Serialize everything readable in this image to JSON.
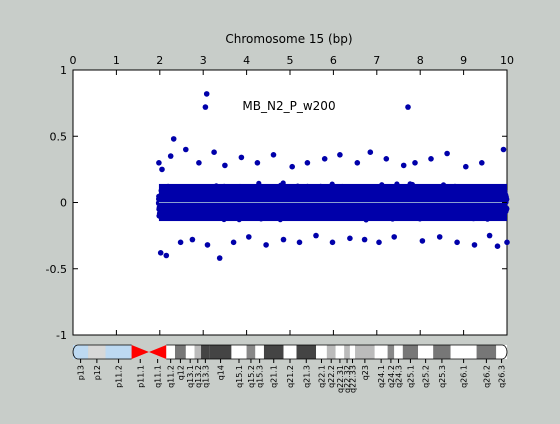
{
  "chart_data": {
    "type": "scatter",
    "title": "",
    "xlabel": "Chromosome 15 (bp)",
    "ylabel": "",
    "annotation": "MB_N2_P_w200",
    "xlim": [
      0,
      10
    ],
    "ylim": [
      -1,
      1
    ],
    "x_ticks": [
      "0",
      "1",
      "2",
      "3",
      "4",
      "5",
      "6",
      "7",
      "8",
      "9",
      "10"
    ],
    "y_ticks": [
      "1",
      "0.5",
      "0",
      "-0.5",
      "-1"
    ],
    "grid": false,
    "marker_color": "#0000aa",
    "baseline_color": "#8a9fd0",
    "series": [
      {
        "x": [
          1.98,
          2.02,
          2.05,
          2.15,
          2.25,
          2.32,
          2.48,
          2.6,
          2.75,
          2.9,
          3.05,
          3.08,
          3.1,
          3.25,
          3.38,
          3.5,
          3.7,
          3.88,
          4.05,
          4.25,
          4.45,
          4.62,
          4.85,
          5.05,
          5.22,
          5.4,
          5.6,
          5.8,
          5.98,
          6.15,
          6.38,
          6.55,
          6.72,
          6.85,
          7.05,
          7.22,
          7.4,
          7.62,
          7.72,
          7.88,
          8.05,
          8.25,
          8.45,
          8.62,
          8.85,
          9.05,
          9.25,
          9.42,
          9.6,
          9.78,
          9.92,
          10.0
        ],
        "y": [
          0.3,
          -0.38,
          0.25,
          -0.4,
          0.35,
          0.48,
          -0.3,
          0.4,
          -0.28,
          0.3,
          0.72,
          0.82,
          -0.32,
          0.38,
          -0.42,
          0.28,
          -0.3,
          0.34,
          -0.26,
          0.3,
          -0.32,
          0.36,
          -0.28,
          0.27,
          -0.3,
          0.3,
          -0.25,
          0.33,
          -0.3,
          0.36,
          -0.27,
          0.3,
          -0.28,
          0.38,
          -0.3,
          0.33,
          -0.26,
          0.28,
          0.72,
          0.3,
          -0.29,
          0.33,
          -0.26,
          0.37,
          -0.3,
          0.27,
          -0.32,
          0.3,
          -0.25,
          -0.33,
          0.4,
          -0.3
        ]
      }
    ],
    "ideogram_bands": [
      {
        "name": "p13",
        "start": 0.0,
        "end": 0.35,
        "shade": "#bdd9f2"
      },
      {
        "name": "p12",
        "start": 0.35,
        "end": 0.75,
        "shade": "#d8d8d8"
      },
      {
        "name": "p11.2",
        "start": 0.75,
        "end": 1.35,
        "shade": "#bdd9f2"
      },
      {
        "name": "p11.1",
        "start": 1.35,
        "end": 1.75,
        "shade": "#ff0000"
      },
      {
        "name": "q11.1",
        "start": 1.75,
        "end": 2.15,
        "shade": "#ff0000"
      },
      {
        "name": "q11.2",
        "start": 2.15,
        "end": 2.35,
        "shade": "#ffffff"
      },
      {
        "name": "q12",
        "start": 2.35,
        "end": 2.6,
        "shade": "#777777"
      },
      {
        "name": "q13.1",
        "start": 2.6,
        "end": 2.8,
        "shade": "#ffffff"
      },
      {
        "name": "q13.2",
        "start": 2.8,
        "end": 2.95,
        "shade": "#bbbbbb"
      },
      {
        "name": "q13.3",
        "start": 2.95,
        "end": 3.15,
        "shade": "#444444"
      },
      {
        "name": "q14",
        "start": 3.15,
        "end": 3.65,
        "shade": "#444444"
      },
      {
        "name": "q15.1",
        "start": 3.65,
        "end": 4.0,
        "shade": "#ffffff"
      },
      {
        "name": "q15.2",
        "start": 4.0,
        "end": 4.2,
        "shade": "#888888"
      },
      {
        "name": "q15.3",
        "start": 4.2,
        "end": 4.4,
        "shade": "#ffffff"
      },
      {
        "name": "q21.1",
        "start": 4.4,
        "end": 4.85,
        "shade": "#444444"
      },
      {
        "name": "q21.2",
        "start": 4.85,
        "end": 5.15,
        "shade": "#ffffff"
      },
      {
        "name": "q21.3",
        "start": 5.15,
        "end": 5.6,
        "shade": "#444444"
      },
      {
        "name": "q22.1",
        "start": 5.6,
        "end": 5.85,
        "shade": "#ffffff"
      },
      {
        "name": "q22.2",
        "start": 5.85,
        "end": 6.05,
        "shade": "#bbbbbb"
      },
      {
        "name": "q22.31",
        "start": 6.05,
        "end": 6.25,
        "shade": "#ffffff"
      },
      {
        "name": "q22.32",
        "start": 6.25,
        "end": 6.38,
        "shade": "#bbbbbb"
      },
      {
        "name": "q22.33",
        "start": 6.38,
        "end": 6.5,
        "shade": "#ffffff"
      },
      {
        "name": "q23",
        "start": 6.5,
        "end": 6.95,
        "shade": "#bbbbbb"
      },
      {
        "name": "q24.1",
        "start": 6.95,
        "end": 7.25,
        "shade": "#ffffff"
      },
      {
        "name": "q24.2",
        "start": 7.25,
        "end": 7.4,
        "shade": "#888888"
      },
      {
        "name": "q24.3",
        "start": 7.4,
        "end": 7.6,
        "shade": "#ffffff"
      },
      {
        "name": "q25.1",
        "start": 7.6,
        "end": 7.95,
        "shade": "#777777"
      },
      {
        "name": "q25.2",
        "start": 7.95,
        "end": 8.3,
        "shade": "#ffffff"
      },
      {
        "name": "q25.3",
        "start": 8.3,
        "end": 8.7,
        "shade": "#777777"
      },
      {
        "name": "q26.1",
        "start": 8.7,
        "end": 9.3,
        "shade": "#ffffff"
      },
      {
        "name": "q26.2",
        "start": 9.3,
        "end": 9.75,
        "shade": "#777777"
      },
      {
        "name": "q26.3",
        "start": 9.75,
        "end": 10.0,
        "shade": "#ffffff"
      }
    ]
  }
}
